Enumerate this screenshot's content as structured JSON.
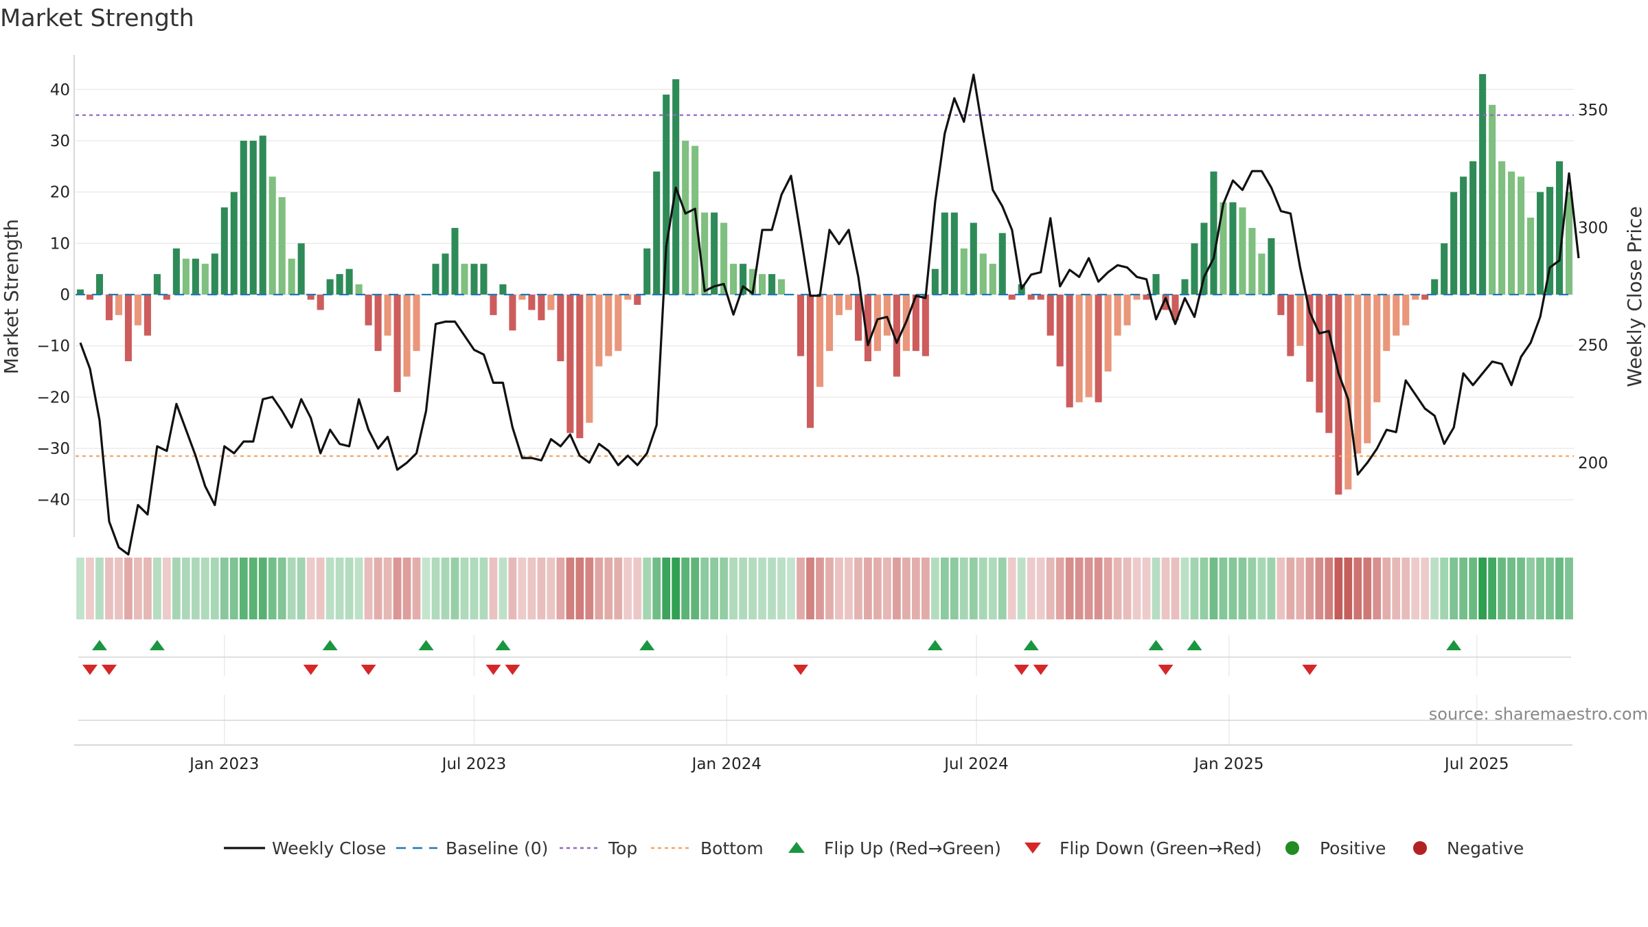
{
  "chart_data": {
    "type": "bar",
    "title": "Market Strength",
    "ylabel_left": "Market Strength",
    "ylabel_right": "Weekly Close Price",
    "ylim_left": [
      -47,
      47
    ],
    "ylim_right": [
      169,
      374
    ],
    "yticks_left": [
      40,
      30,
      20,
      10,
      0,
      -10,
      -20,
      -30,
      -40
    ],
    "yticks_right": [
      350,
      300,
      250,
      200
    ],
    "x_start_week": 0,
    "date_ticks": [
      {
        "label": "Jan 2023",
        "week": 15
      },
      {
        "label": "Jul 2023",
        "week": 41
      },
      {
        "label": "Jan 2024",
        "week": 67.3
      },
      {
        "label": "Jul 2024",
        "week": 93.3
      },
      {
        "label": "Jan 2025",
        "week": 119.6
      },
      {
        "label": "Jul 2025",
        "week": 145.4
      }
    ],
    "top_line": 35,
    "bottom_line": -31.5,
    "baseline": 0,
    "strength": [
      1,
      -1,
      4,
      -5,
      -4,
      -13,
      -6,
      -8,
      4,
      -1,
      9,
      7,
      7,
      6,
      8,
      17,
      20,
      30,
      30,
      31,
      23,
      19,
      7,
      10,
      -1,
      -3,
      3,
      4,
      5,
      2,
      -6,
      -11,
      -8,
      -19,
      -16,
      -11,
      0,
      6,
      8,
      13,
      6,
      6,
      6,
      -4,
      2,
      -7,
      -1,
      -3,
      -5,
      -3,
      -13,
      -27,
      -28,
      -25,
      -14,
      -12,
      -11,
      -1,
      -2,
      9,
      24,
      39,
      42,
      30,
      29,
      16,
      16,
      14,
      6,
      6,
      5,
      4,
      4,
      3,
      0,
      -12,
      -26,
      -18,
      -11,
      -4,
      -3,
      -9,
      -13,
      -11,
      -8,
      -16,
      -11,
      -11,
      -12,
      5,
      16,
      16,
      9,
      14,
      8,
      6,
      12,
      -1,
      2,
      -1,
      -1,
      -8,
      -14,
      -22,
      -21,
      -20,
      -21,
      -15,
      -8,
      -6,
      -1,
      -1,
      4,
      -3,
      -5,
      3,
      10,
      14,
      24,
      18,
      18,
      17,
      13,
      8,
      11,
      -4,
      -12,
      -10,
      -17,
      -23,
      -27,
      -39,
      -38,
      -31,
      -29,
      -21,
      -11,
      -8,
      -6,
      -1,
      -1,
      3,
      10,
      20,
      23,
      26,
      43,
      37,
      26,
      24,
      23,
      15,
      20,
      21,
      26,
      20
    ],
    "weekly_close": [
      251,
      240,
      218,
      175,
      164,
      161,
      182,
      178,
      207,
      205,
      225,
      214,
      203,
      190,
      182,
      207,
      204,
      209,
      209,
      227,
      228,
      222,
      215,
      227,
      219,
      204,
      214,
      208,
      207,
      227,
      214,
      206,
      211,
      197,
      200,
      204,
      222,
      259,
      260,
      260,
      254,
      248,
      246,
      234,
      234,
      215,
      202,
      202,
      201,
      210,
      207,
      212,
      203,
      200,
      208,
      205,
      199,
      203,
      199,
      204,
      216,
      292,
      317,
      306,
      308,
      273,
      275,
      276,
      263,
      275,
      272,
      299,
      299,
      314,
      322,
      297,
      271,
      271,
      299,
      293,
      299,
      279,
      250,
      261,
      262,
      251,
      260,
      271,
      270,
      311,
      340,
      355,
      345,
      365,
      340,
      316,
      309,
      299,
      274,
      280,
      281,
      304,
      275,
      282,
      279,
      287,
      277,
      281,
      284,
      283,
      279,
      278,
      261,
      270,
      259,
      270,
      262,
      279,
      287,
      310,
      320,
      316,
      324,
      324,
      317,
      307,
      306,
      283,
      264,
      255,
      256,
      238,
      227,
      195,
      200,
      206,
      214,
      213,
      235,
      229,
      223,
      220,
      208,
      215,
      238,
      233,
      238,
      243,
      242,
      233,
      245,
      251,
      262,
      283,
      286,
      323,
      287
    ],
    "flip_up_weeks": [
      2,
      8,
      26,
      36,
      44,
      59,
      89,
      99,
      112,
      116,
      143
    ],
    "flip_down_weeks": [
      1,
      3,
      24,
      30,
      43,
      45,
      75,
      98,
      100,
      113,
      128
    ],
    "colors": {
      "strong_pos": "#2e8b57",
      "weak_pos": "#7fbf7f",
      "strong_neg": "#cd5c5c",
      "weak_neg": "#e9967a",
      "line": "#111111",
      "top_line": "#9467bd",
      "bottom_line": "#f4a460",
      "baseline": "#1f77b4",
      "flip_up": "#1a9641",
      "flip_down": "#d62728",
      "positive_dot": "#228b22",
      "negative_dot": "#b22222"
    },
    "legend": [
      "Weekly Close",
      "Baseline (0)",
      "Top",
      "Bottom",
      "Flip Up (Red→Green)",
      "Flip Down (Green→Red)",
      "Positive",
      "Negative"
    ],
    "source": "source: sharemaestro.com"
  }
}
